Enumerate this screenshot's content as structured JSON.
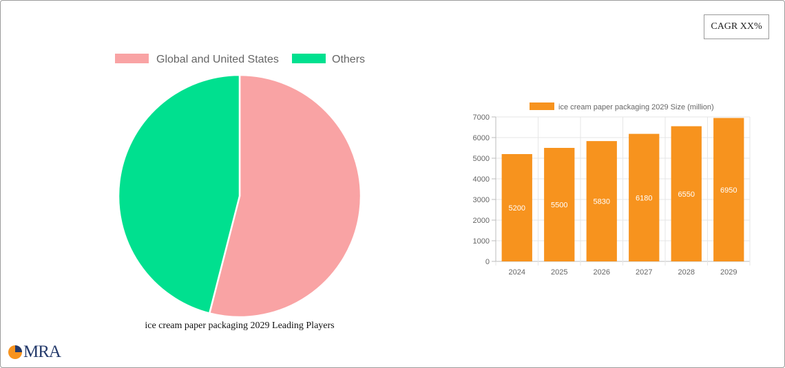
{
  "cagr_label": "CAGR XX%",
  "logo": {
    "text": "MRA"
  },
  "chart_data": [
    {
      "type": "pie",
      "title": "ice cream paper packaging 2029 Leading Players",
      "labels": [
        "Global and United States",
        "Others"
      ],
      "values": [
        54,
        46
      ],
      "colors": [
        "#f9a3a4",
        "#00e08f"
      ]
    },
    {
      "type": "bar",
      "categories": [
        "2024",
        "2025",
        "2026",
        "2027",
        "2028",
        "2029"
      ],
      "series": [
        {
          "name": "ice cream paper packaging 2029 Size (million)",
          "values": [
            5200,
            5500,
            5830,
            6180,
            6550,
            6950
          ],
          "color": "#f7931e"
        }
      ],
      "ylim": [
        0,
        7000
      ],
      "yticks": [
        0,
        1000,
        2000,
        3000,
        4000,
        5000,
        6000,
        7000
      ],
      "grid": true,
      "legend": "top"
    }
  ]
}
